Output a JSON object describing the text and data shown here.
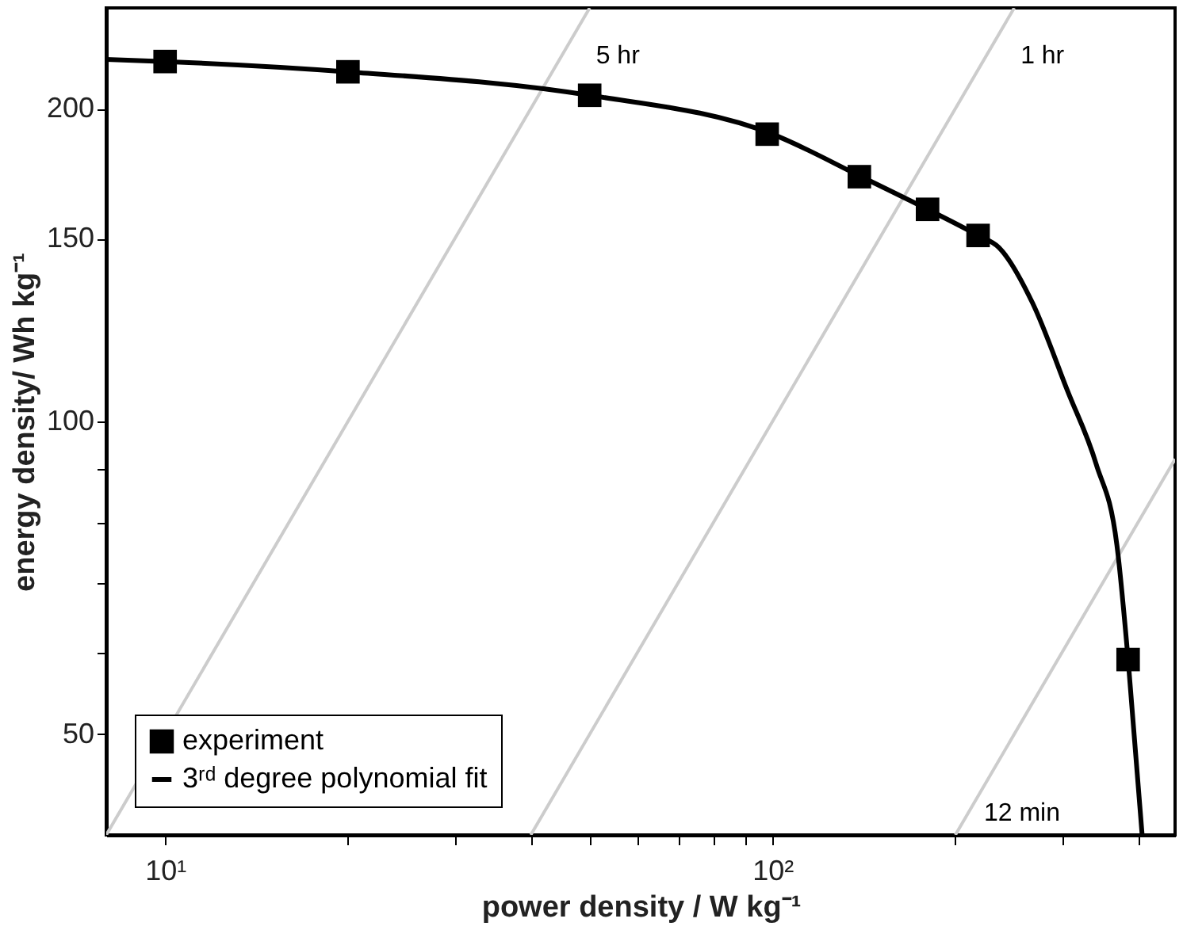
{
  "chart_data": {
    "type": "scatter",
    "xlabel": "power density / W kg⁻¹",
    "ylabel": "energy density/ Wh kg⁻¹",
    "log": "xy",
    "grid": false,
    "legend": "bottom left",
    "xlim": [
      8,
      460
    ],
    "ylim": [
      40,
      250
    ],
    "xticks": [
      {
        "value": 10,
        "label": "10¹"
      },
      {
        "value": 20,
        "label": null
      },
      {
        "value": 30,
        "label": null
      },
      {
        "value": 40,
        "label": null
      },
      {
        "value": 50,
        "label": null
      },
      {
        "value": 60,
        "label": null
      },
      {
        "value": 70,
        "label": null
      },
      {
        "value": 80,
        "label": null
      },
      {
        "value": 90,
        "label": null
      },
      {
        "value": 100,
        "label": "10²"
      },
      {
        "value": 200,
        "label": null
      },
      {
        "value": 300,
        "label": null
      },
      {
        "value": 400,
        "label": null
      }
    ],
    "yticks": [
      50,
      {
        "value": 60,
        "label": null
      },
      {
        "value": 70,
        "label": null
      },
      {
        "value": 80,
        "label": null
      },
      {
        "value": 90,
        "label": null
      },
      100,
      150,
      200
    ],
    "series": [
      {
        "type": "line",
        "color": "#cccccc",
        "x": [
          8,
          50
        ],
        "values": [
          40,
          250
        ]
      },
      {
        "type": "line",
        "color": "#cccccc",
        "x": [
          40,
          250
        ],
        "values": [
          40,
          250
        ]
      },
      {
        "type": "line",
        "color": "#cccccc",
        "x": [
          200,
          460
        ],
        "values": [
          40,
          92
        ]
      },
      {
        "name": "experiment",
        "marker": "square",
        "color": "#000000",
        "x": [
          10,
          20,
          50,
          98,
          139,
          180,
          218,
          385
        ],
        "values": [
          222,
          217,
          206,
          189,
          172,
          160,
          151,
          59
        ]
      },
      {
        "name": "3ʳᵈ degree polynomial fit",
        "type": "line",
        "color": "#000000",
        "x": [
          8,
          10,
          20,
          50,
          100,
          140,
          180,
          218,
          236,
          268,
          306,
          341,
          369,
          385,
          406
        ],
        "values": [
          223,
          222,
          217,
          206,
          189,
          172,
          160,
          151,
          147,
          130,
          107,
          91,
          76,
          59,
          40
        ]
      }
    ],
    "annotations": [
      {
        "text": "5 hr",
        "x": 50,
        "y": 250
      },
      {
        "text": "1 hr",
        "x": 250,
        "y": 250
      },
      {
        "text": "12 min",
        "x": 200,
        "y": 40
      }
    ]
  }
}
